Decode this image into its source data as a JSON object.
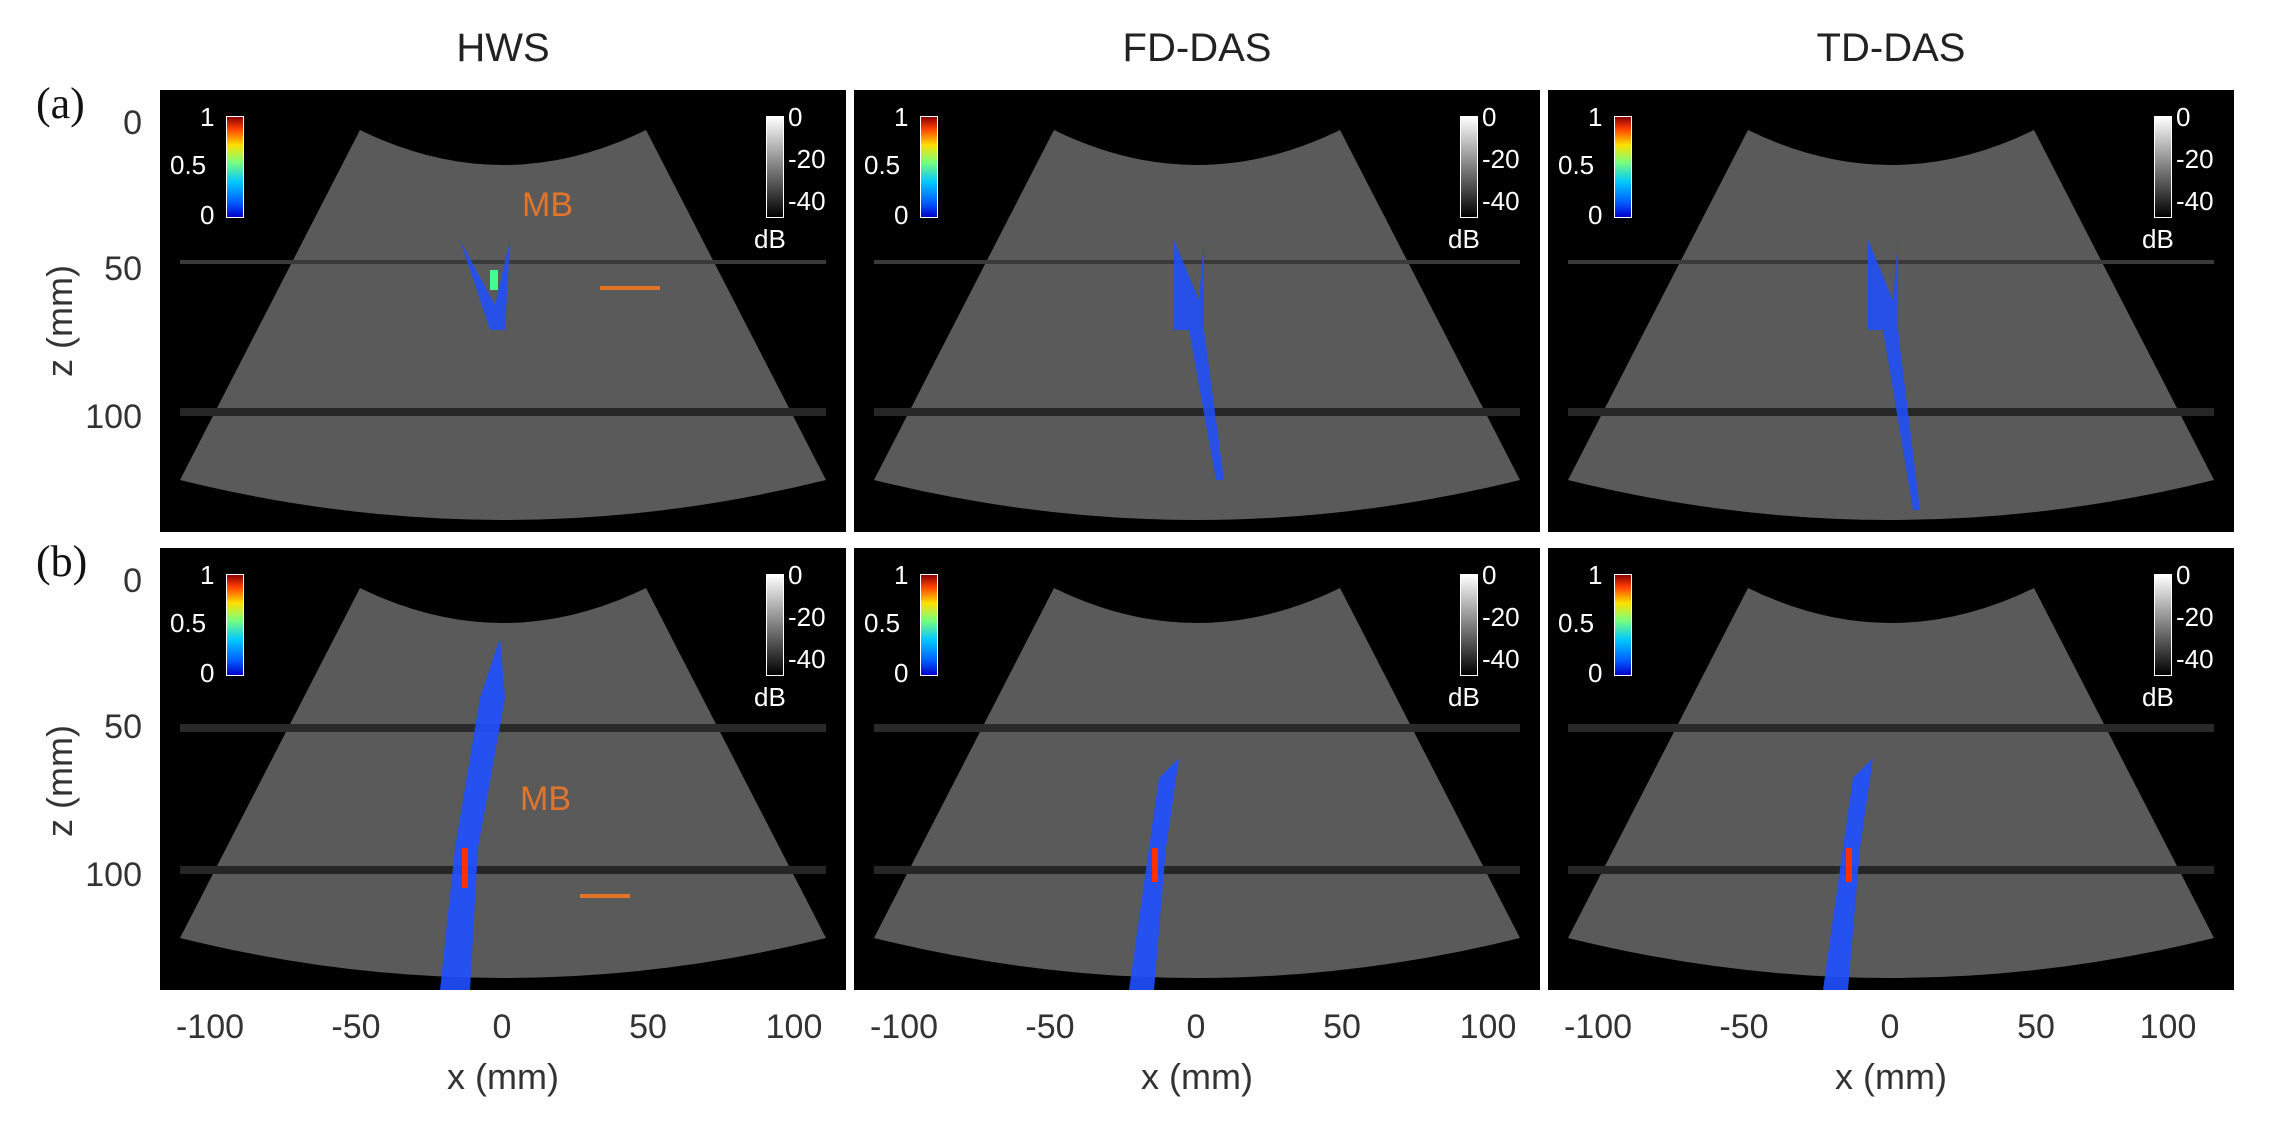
{
  "column_titles": [
    "HWS",
    "FD-DAS",
    "TD-DAS"
  ],
  "row_labels": [
    "(a)",
    "(b)"
  ],
  "y_axis": {
    "label": "z (mm)",
    "ticks": [
      "0",
      "50",
      "100"
    ]
  },
  "x_axis": {
    "label": "x (mm)",
    "ticks": [
      "-100",
      "-50",
      "0",
      "50",
      "100"
    ]
  },
  "colorbar_jet": {
    "ticks": [
      "1",
      "0.5",
      "0"
    ]
  },
  "colorbar_gray": {
    "ticks": [
      "0",
      "-20",
      "-40"
    ],
    "unit": "dB"
  },
  "annotation": "MB",
  "colors": {
    "annotation": "#e3752b",
    "background": "#000000"
  }
}
